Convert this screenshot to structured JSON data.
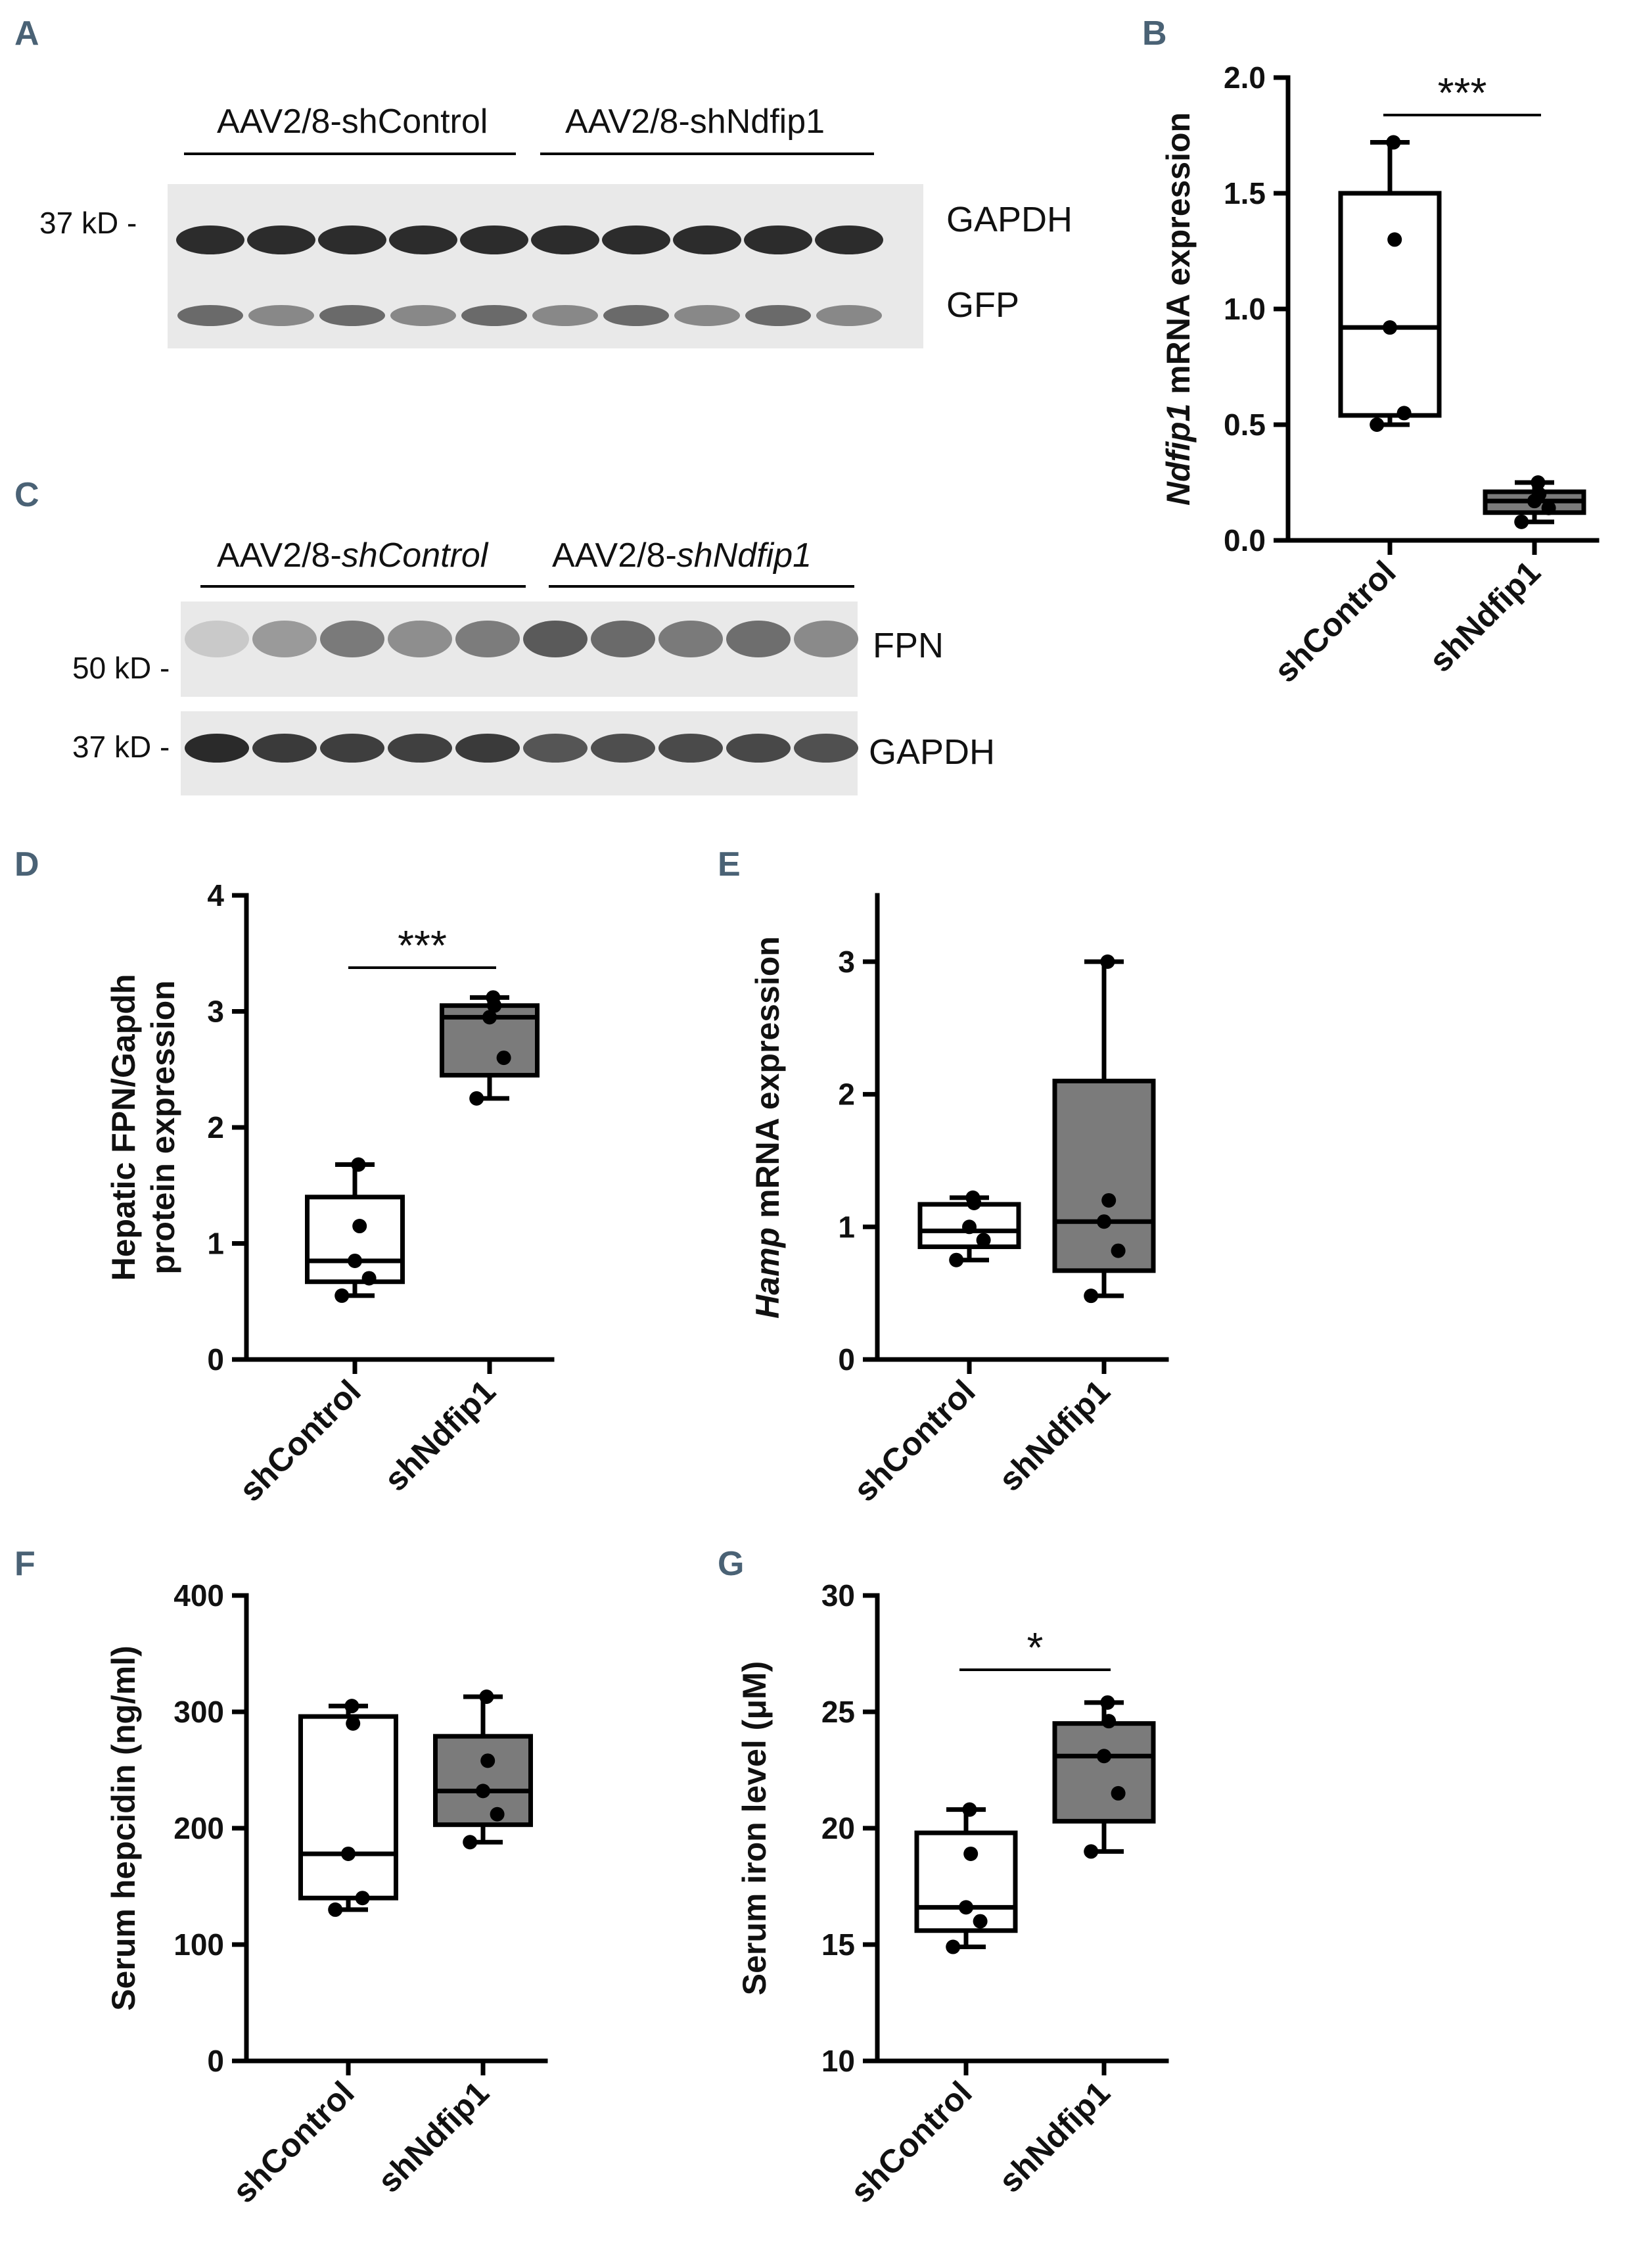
{
  "panel_letters": {
    "A": "A",
    "B": "B",
    "C": "C",
    "D": "D",
    "E": "E",
    "F": "F",
    "G": "G"
  },
  "blot_A": {
    "group_labels": [
      "AAV2/8-shControl",
      "AAV2/8-shNdfip1"
    ],
    "marker": "37 kD -",
    "bands": [
      "GAPDH",
      "GFP"
    ],
    "lanes": 10
  },
  "blot_C": {
    "group_prefix": "AAV2/8-",
    "group_suffixes": [
      "shControl",
      "shNdfip1"
    ],
    "marker_fpn": "50 kD -",
    "marker_gapdh": "37 kD -",
    "band_fpn": "FPN",
    "band_gapdh": "GAPDH",
    "lanes": 10
  },
  "colors": {
    "control_fill": "#ffffff",
    "knockdown_fill": "#7b7b7b",
    "axis": "#000000"
  },
  "chart_data": [
    {
      "panel": "B",
      "type": "box",
      "categories": [
        "shControl",
        "shNdfip1"
      ],
      "ylabel_italic": "Ndfip1",
      "ylabel_rest": " mRNA expression",
      "ylim": [
        0,
        2.0
      ],
      "yticks": [
        "0.0",
        "0.5",
        "1.0",
        "1.5",
        "2.0"
      ],
      "significance": "***",
      "boxes": [
        {
          "name": "shControl",
          "min": 0.5,
          "q1": 0.54,
          "median": 0.92,
          "q3": 1.5,
          "max": 1.72,
          "points": [
            0.5,
            0.55,
            0.92,
            1.3,
            1.72
          ]
        },
        {
          "name": "shNdfip1",
          "min": 0.08,
          "q1": 0.12,
          "median": 0.17,
          "q3": 0.21,
          "max": 0.25,
          "points": [
            0.08,
            0.14,
            0.17,
            0.2,
            0.25
          ]
        }
      ]
    },
    {
      "panel": "D",
      "type": "box",
      "categories": [
        "shControl",
        "shNdfip1"
      ],
      "ylabel_lines": [
        "Hepatic FPN/Gapdh",
        "protein expression"
      ],
      "ylim": [
        0,
        4
      ],
      "yticks": [
        "0",
        "1",
        "2",
        "3",
        "4"
      ],
      "significance": "***",
      "boxes": [
        {
          "name": "shControl",
          "min": 0.55,
          "q1": 0.67,
          "median": 0.85,
          "q3": 1.4,
          "max": 1.68,
          "points": [
            0.55,
            0.7,
            0.85,
            1.15,
            1.68
          ]
        },
        {
          "name": "shNdfip1",
          "min": 2.25,
          "q1": 2.45,
          "median": 2.95,
          "q3": 3.05,
          "max": 3.12,
          "points": [
            2.25,
            2.6,
            2.95,
            3.05,
            3.12
          ]
        }
      ]
    },
    {
      "panel": "E",
      "type": "box",
      "categories": [
        "shControl",
        "shNdfip1"
      ],
      "ylabel_italic": "Hamp",
      "ylabel_rest": " mRNA expression",
      "ylim": [
        0,
        3.5
      ],
      "yticks": [
        "0",
        "1",
        "2",
        "3"
      ],
      "significance": "",
      "boxes": [
        {
          "name": "shControl",
          "min": 0.75,
          "q1": 0.85,
          "median": 0.97,
          "q3": 1.17,
          "max": 1.22,
          "points": [
            0.75,
            0.9,
            1.0,
            1.18,
            1.22
          ]
        },
        {
          "name": "shNdfip1",
          "min": 0.48,
          "q1": 0.67,
          "median": 1.04,
          "q3": 2.1,
          "max": 3.0,
          "points": [
            0.48,
            0.82,
            1.04,
            1.2,
            3.0
          ]
        }
      ]
    },
    {
      "panel": "F",
      "type": "box",
      "categories": [
        "shControl",
        "shNdfip1"
      ],
      "ylabel": "Serum hepcidin (ng/ml)",
      "ylim": [
        0,
        400
      ],
      "yticks": [
        "0",
        "100",
        "200",
        "300",
        "400"
      ],
      "significance": "",
      "boxes": [
        {
          "name": "shControl",
          "min": 130,
          "q1": 140,
          "median": 178,
          "q3": 296,
          "max": 305,
          "points": [
            130,
            140,
            178,
            290,
            305
          ]
        },
        {
          "name": "shNdfip1",
          "min": 188,
          "q1": 203,
          "median": 232,
          "q3": 279,
          "max": 313,
          "points": [
            188,
            212,
            232,
            258,
            313
          ]
        }
      ]
    },
    {
      "panel": "G",
      "type": "box",
      "categories": [
        "shControl",
        "shNdfip1"
      ],
      "ylabel": "Serum iron level (μM)",
      "ylim": [
        10,
        30
      ],
      "yticks": [
        "10",
        "15",
        "20",
        "25",
        "30"
      ],
      "significance": "*",
      "boxes": [
        {
          "name": "shControl",
          "min": 14.9,
          "q1": 15.6,
          "median": 16.6,
          "q3": 19.8,
          "max": 20.8,
          "points": [
            14.9,
            16.0,
            16.6,
            18.9,
            20.8
          ]
        },
        {
          "name": "shNdfip1",
          "min": 19.0,
          "q1": 20.3,
          "median": 23.1,
          "q3": 24.5,
          "max": 25.4,
          "points": [
            19.0,
            21.5,
            23.1,
            24.6,
            25.4
          ]
        }
      ]
    }
  ]
}
